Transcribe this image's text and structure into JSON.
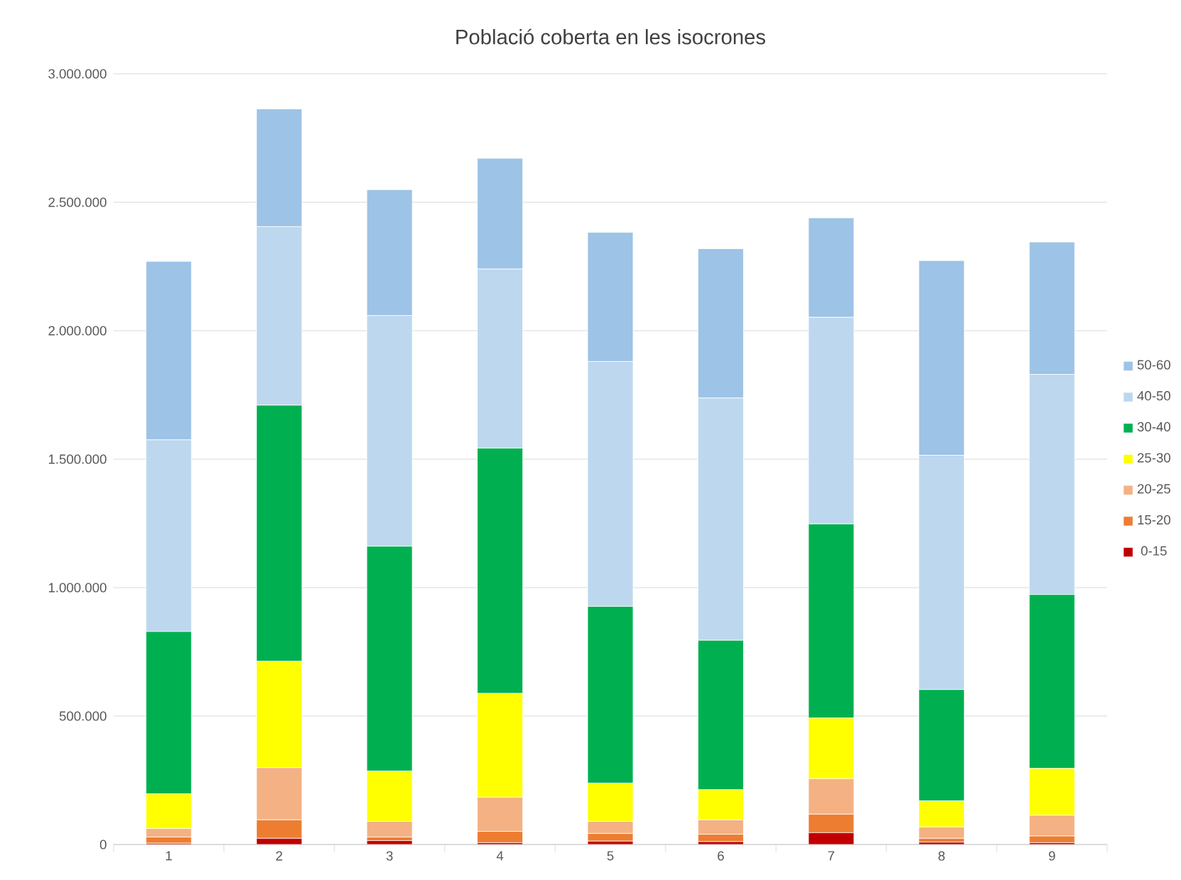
{
  "chart_data": {
    "type": "bar",
    "title": "Població coberta en les isocrones",
    "stacked": true,
    "categories": [
      "1",
      "2",
      "3",
      "4",
      "5",
      "6",
      "7",
      "8",
      "9"
    ],
    "series": [
      {
        "name": "0-15",
        "color": "#c00000",
        "values": [
          5000,
          24000,
          15000,
          7000,
          13000,
          11000,
          46000,
          9000,
          7000
        ]
      },
      {
        "name": "15-20",
        "color": "#ed7d31",
        "values": [
          24000,
          72000,
          14000,
          44000,
          30000,
          29000,
          72000,
          15000,
          26000
        ]
      },
      {
        "name": "20-25",
        "color": "#f4b183",
        "values": [
          33000,
          203000,
          61000,
          133000,
          47000,
          56000,
          138000,
          44000,
          81000
        ]
      },
      {
        "name": "25-30",
        "color": "#ffff00",
        "values": [
          135000,
          414000,
          196000,
          404000,
          149000,
          117000,
          236000,
          102000,
          182000
        ]
      },
      {
        "name": "30-40",
        "color": "#00b050",
        "values": [
          632000,
          997000,
          875000,
          955000,
          688000,
          582000,
          756000,
          433000,
          677000
        ]
      },
      {
        "name": "40-50",
        "color": "#bdd7ee",
        "values": [
          746000,
          695000,
          898000,
          697000,
          953000,
          943000,
          804000,
          912000,
          857000
        ]
      },
      {
        "name": "50-60",
        "color": "#9dc3e6",
        "values": [
          695000,
          458000,
          490000,
          431000,
          503000,
          581000,
          387000,
          758000,
          515000
        ]
      }
    ],
    "ylim": [
      0,
      3000000
    ],
    "yticks": [
      {
        "value": 0,
        "label": "0"
      },
      {
        "value": 500000,
        "label": "500.000"
      },
      {
        "value": 1000000,
        "label": "1.000.000"
      },
      {
        "value": 1500000,
        "label": "1.500.000"
      },
      {
        "value": 2000000,
        "label": "2.000.000"
      },
      {
        "value": 2500000,
        "label": "2.500.000"
      },
      {
        "value": 3000000,
        "label": "3.000.000"
      }
    ],
    "grid": "y",
    "legend": "right"
  }
}
